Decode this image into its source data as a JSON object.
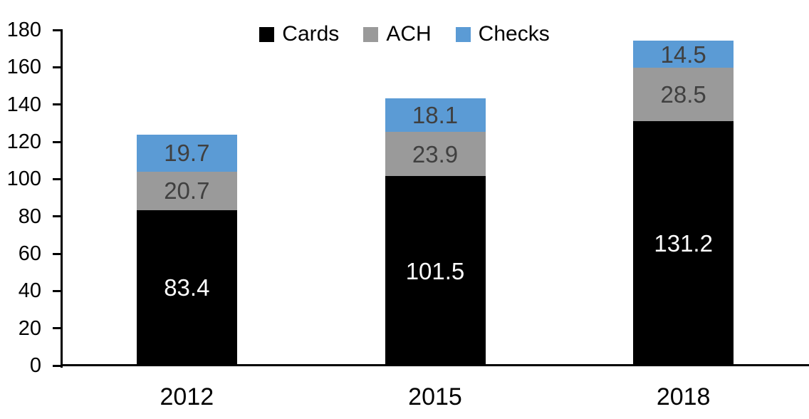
{
  "figure": {
    "background": "#FFFFFF",
    "axis_color": "#000000",
    "tick_text_color": "#000000"
  },
  "chart_data": {
    "type": "bar",
    "stacked": true,
    "title": "",
    "xlabel": "",
    "ylabel": "",
    "categories": [
      "2012",
      "2015",
      "2018"
    ],
    "series": [
      {
        "name": "Cards",
        "color": "#000000",
        "label_color": "#FFFFFF",
        "values": [
          83.4,
          101.5,
          131.2
        ]
      },
      {
        "name": "ACH",
        "color": "#9A9A9A",
        "label_color": "#404040",
        "values": [
          20.7,
          23.9,
          28.5
        ]
      },
      {
        "name": "Checks",
        "color": "#5B9BD5",
        "label_color": "#404040",
        "values": [
          19.7,
          18.1,
          14.5
        ]
      }
    ],
    "totals": [
      123.8,
      143.5,
      174.2
    ],
    "y_ticks": [
      0,
      20,
      40,
      60,
      80,
      100,
      120,
      140,
      160,
      180
    ],
    "ylim": [
      0,
      180
    ],
    "grid": false,
    "legend_position": "top-center"
  }
}
